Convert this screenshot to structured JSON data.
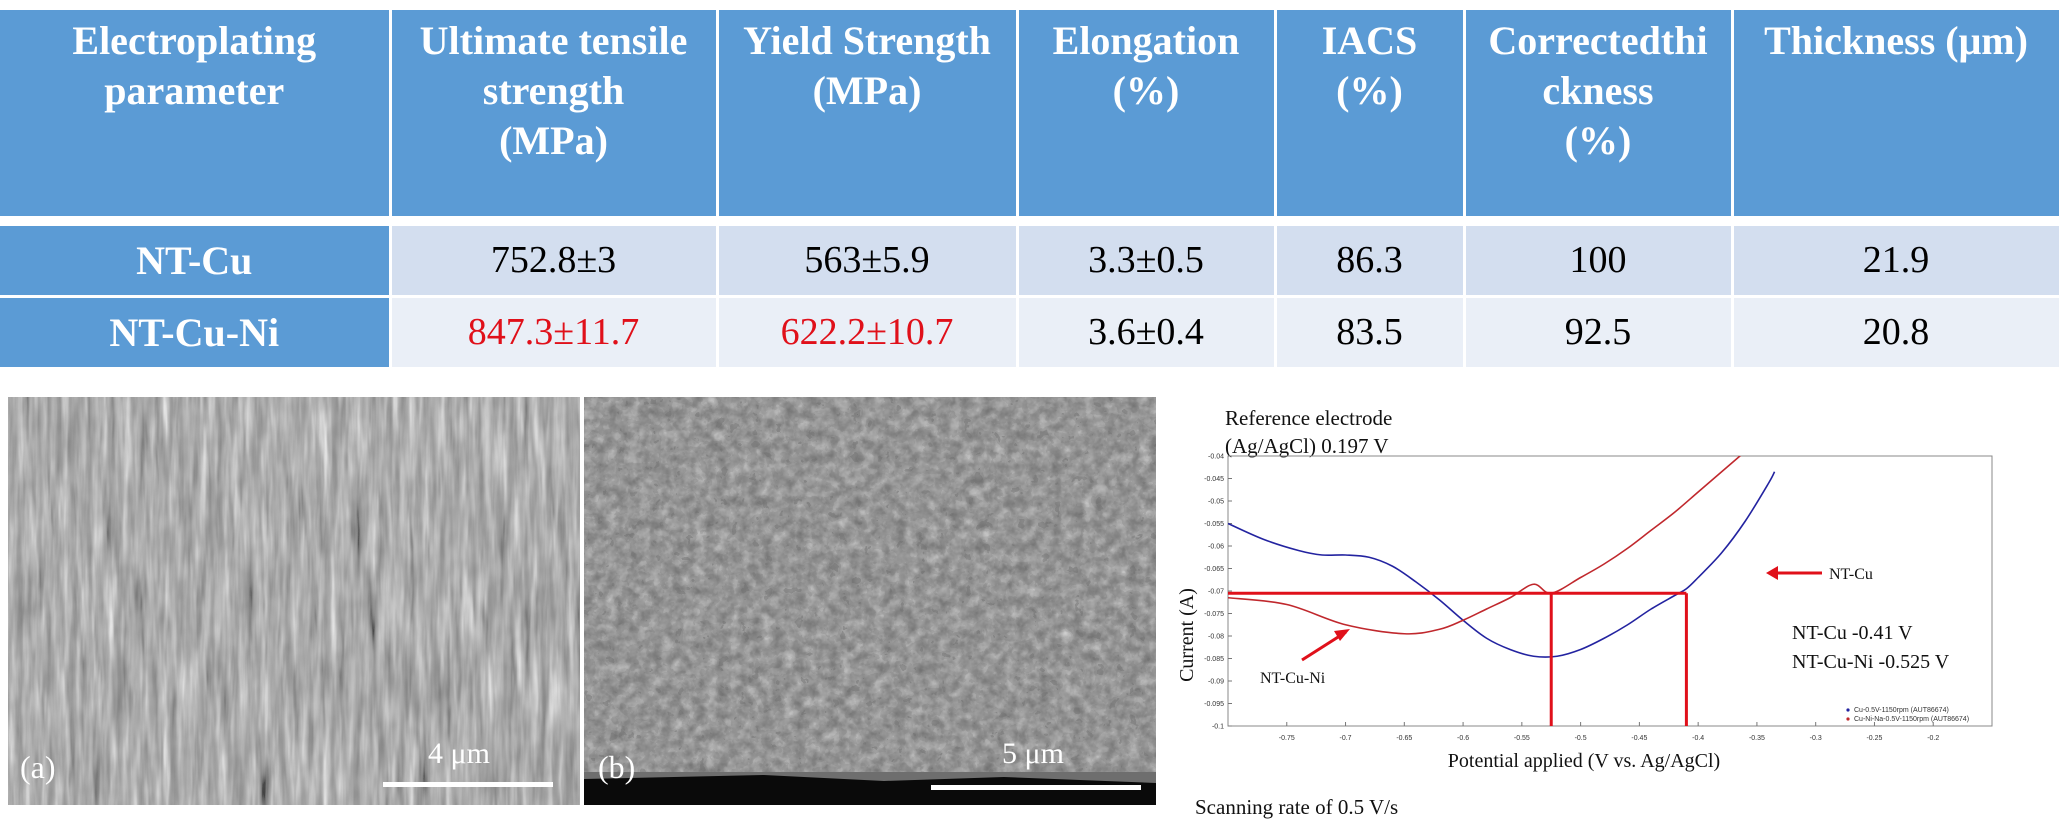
{
  "table": {
    "headers": [
      "Electroplating parameter",
      "Ultimate tensile strength (MPa)",
      "Yield Strength (MPa)",
      "Elongation (%)",
      "IACS (%)",
      "Correctedthickness (%)",
      "Thickness (μm)"
    ],
    "header_lines": [
      [
        "Electroplating",
        "parameter"
      ],
      [
        "Ultimate tensile",
        "strength",
        "(MPa)"
      ],
      [
        "Yield Strength",
        "(MPa)"
      ],
      [
        "Elongation",
        "(%)"
      ],
      [
        "IACS",
        "(%)"
      ],
      [
        "Correctedthi",
        "ckness",
        "(%)"
      ],
      [
        "Thickness (μm)"
      ]
    ],
    "rows": [
      {
        "name": "NT-Cu",
        "cells": [
          "752.8±3",
          "563±5.9",
          "3.3±0.5",
          "86.3",
          "100",
          "21.9"
        ]
      },
      {
        "name": "NT-Cu-Ni",
        "cells": [
          "847.3±11.7",
          "622.2±10.7",
          "3.6±0.4",
          "83.5",
          "92.5",
          "20.8"
        ]
      }
    ],
    "highlight_color": "#e0101a",
    "header_color": "#5b9bd5"
  },
  "micrographs": [
    {
      "label": "(a)",
      "scale": "4 μm"
    },
    {
      "label": "(b)",
      "scale": "5 μm"
    }
  ],
  "chart_data": {
    "type": "line",
    "title": "",
    "xlabel": "Potential applied (V vs. Ag/AgCl)",
    "ylabel": "Current (A)",
    "xlim": [
      -0.8,
      -0.15
    ],
    "ylim": [
      -0.1,
      -0.04
    ],
    "x_ticks": [
      "-0.75",
      "-0.7",
      "-0.65",
      "-0.6",
      "-0.55",
      "-0.5",
      "-0.45",
      "-0.4",
      "-0.35",
      "-0.3",
      "-0.25",
      "-0.2"
    ],
    "x_tick_values": [
      -0.75,
      -0.7,
      -0.65,
      -0.6,
      -0.55,
      -0.5,
      -0.45,
      -0.4,
      -0.35,
      -0.3,
      -0.25,
      -0.2
    ],
    "y_ticks": [
      "-0.04",
      "-0.045",
      "-0.05",
      "-0.055",
      "-0.06",
      "-0.065",
      "-0.07",
      "-0.075",
      "-0.08",
      "-0.085",
      "-0.09",
      "-0.095",
      "-0.1"
    ],
    "y_tick_values": [
      -0.04,
      -0.045,
      -0.05,
      -0.055,
      -0.06,
      -0.065,
      -0.07,
      -0.075,
      -0.08,
      -0.085,
      -0.09,
      -0.095,
      -0.1
    ],
    "series": [
      {
        "name": "Cu-0.5V-1150rpm (AUT86674)",
        "color": "#2323a0",
        "x": [
          -0.8,
          -0.77,
          -0.74,
          -0.72,
          -0.7,
          -0.68,
          -0.66,
          -0.64,
          -0.62,
          -0.6,
          -0.58,
          -0.56,
          -0.54,
          -0.52,
          -0.5,
          -0.48,
          -0.46,
          -0.44,
          -0.42,
          -0.41,
          -0.4,
          -0.38,
          -0.36,
          -0.34,
          -0.335
        ],
        "y": [
          -0.055,
          -0.0585,
          -0.061,
          -0.062,
          -0.062,
          -0.0625,
          -0.0645,
          -0.068,
          -0.072,
          -0.0765,
          -0.0805,
          -0.083,
          -0.0845,
          -0.0845,
          -0.083,
          -0.0805,
          -0.0775,
          -0.074,
          -0.071,
          -0.0695,
          -0.067,
          -0.0615,
          -0.0545,
          -0.046,
          -0.0435
        ]
      },
      {
        "name": "Cu-Ni-Na-0.5V-1150rpm (AUT86674)",
        "color": "#c0282d",
        "x": [
          -0.8,
          -0.75,
          -0.7,
          -0.65,
          -0.62,
          -0.6,
          -0.58,
          -0.56,
          -0.54,
          -0.525,
          -0.5,
          -0.48,
          -0.46,
          -0.44,
          -0.42,
          -0.4,
          -0.38,
          -0.36
        ],
        "y": [
          -0.0715,
          -0.073,
          -0.0775,
          -0.0795,
          -0.0785,
          -0.0765,
          -0.074,
          -0.0715,
          -0.0685,
          -0.0705,
          -0.067,
          -0.064,
          -0.0605,
          -0.0565,
          -0.0525,
          -0.048,
          -0.0435,
          -0.039
        ]
      }
    ],
    "annotations": {
      "reference_line1": "Reference electrode",
      "reference_line2": "(Ag/AgCl) 0.197 V",
      "nt_cu_label": "NT-Cu",
      "nt_cu_ni_label": "NT-Cu-Ni",
      "value_cu": "NT-Cu -0.41 V",
      "value_cu_ni": "NT-Cu-Ni  -0.525 V",
      "scan_rate": "Scanning rate of 0.5 V/s"
    },
    "guide_lines": {
      "y": -0.0705,
      "x_cu": -0.41,
      "x_cu_ni": -0.525,
      "color": "#e0101a"
    },
    "legend_position": "bottom-right",
    "grid": false
  }
}
